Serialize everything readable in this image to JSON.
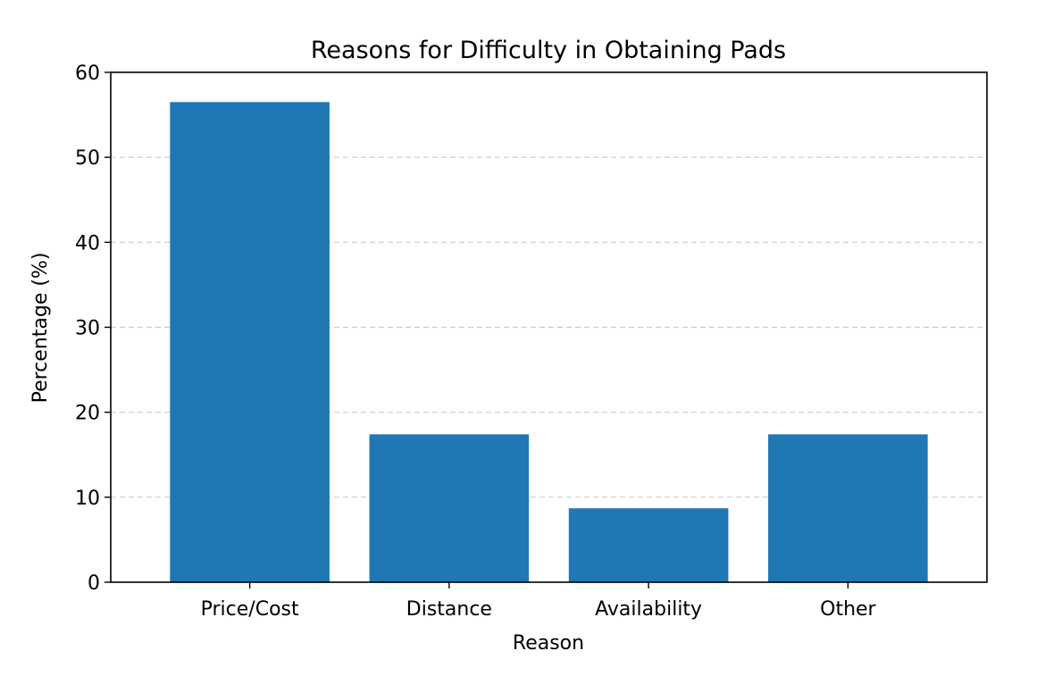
{
  "chart_data": {
    "type": "bar",
    "title": "Reasons for Difficulty in Obtaining Pads",
    "xlabel": "Reason",
    "ylabel": "Percentage (%)",
    "categories": [
      "Price/Cost",
      "Distance",
      "Availability",
      "Other"
    ],
    "values": [
      56.5,
      17.4,
      8.7,
      17.4
    ],
    "ylim": [
      0,
      60
    ],
    "yticks": [
      "0",
      "10",
      "20",
      "30",
      "40",
      "50",
      "60"
    ],
    "grid": "horizontal dashed",
    "bar_color": "#1f77b4",
    "grid_color": "#cccccc"
  }
}
